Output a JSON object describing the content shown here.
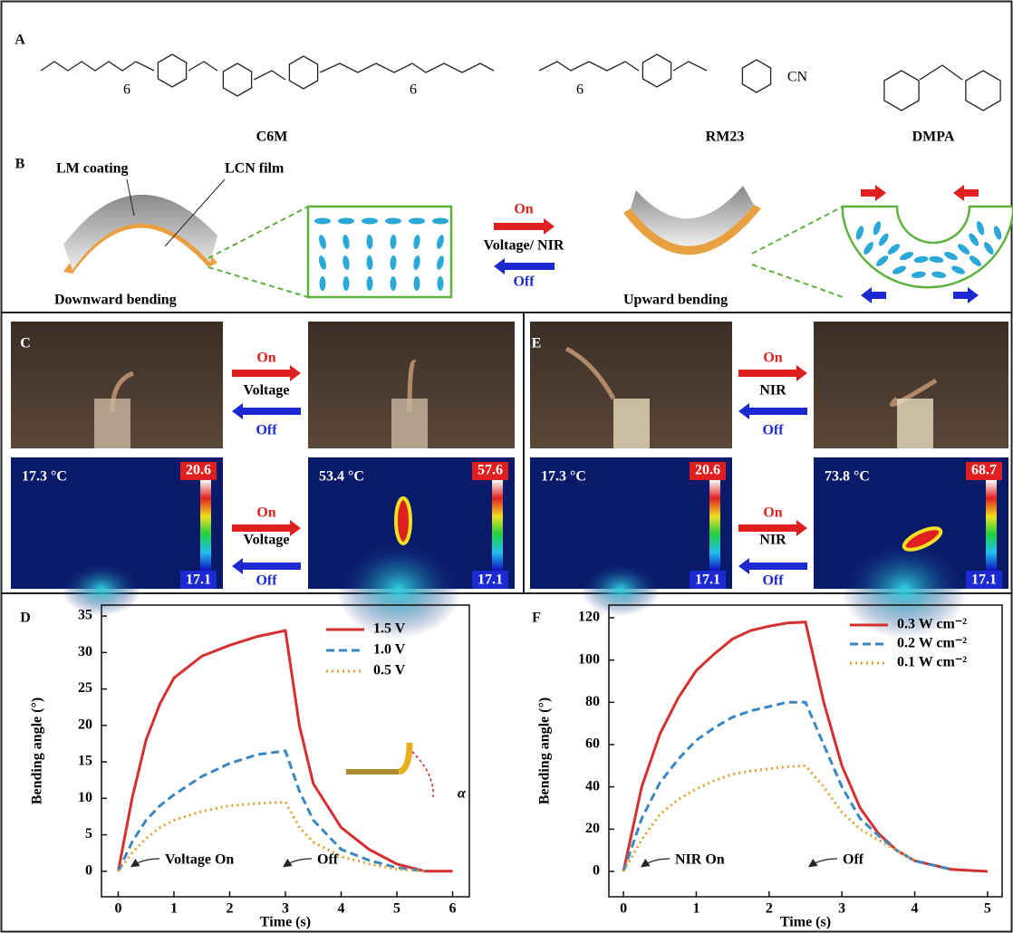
{
  "panel_labels": [
    "A",
    "B",
    "C",
    "D",
    "E",
    "F"
  ],
  "panel_a": {
    "molecules": [
      "C6M",
      "RM23",
      "DMPA"
    ],
    "atoms": [
      "6",
      "6",
      "6",
      "CN"
    ]
  },
  "panel_b": {
    "coating": "LM coating",
    "film": "LCN film",
    "down": "Downward bending",
    "up": "Upward bending",
    "on": "On",
    "stimulus": "Voltage/ NIR",
    "off": "Off"
  },
  "panel_c": {
    "on": [
      "On",
      "On"
    ],
    "stimulus": [
      "Voltage",
      "Voltage"
    ],
    "off": [
      "Off",
      "Off"
    ],
    "temps": [
      "17.3 °C",
      "53.4 °C"
    ],
    "scale_max": [
      "20.6",
      "57.6"
    ],
    "scale_min": [
      "17.1",
      "17.1"
    ]
  },
  "panel_e": {
    "on": [
      "On",
      "On"
    ],
    "stimulus": [
      "NIR",
      "NIR"
    ],
    "off": [
      "Off",
      "Off"
    ],
    "temps": [
      "17.3 °C",
      "73.8 °C"
    ],
    "scale_max": [
      "20.6",
      "68.7"
    ],
    "scale_min": [
      "17.1",
      "17.1"
    ]
  },
  "chart_data": [
    {
      "type": "line",
      "xlabel": "Time (s)",
      "ylabel": "Bending angle (°)",
      "x": [
        0,
        0.25,
        0.5,
        0.75,
        1,
        1.5,
        2,
        2.5,
        3,
        3.25,
        3.5,
        4,
        4.5,
        5,
        5.5,
        6
      ],
      "series": [
        {
          "name": "1.5 V",
          "color": "#d62f2f",
          "dash": "solid",
          "values": [
            0,
            10,
            18,
            23,
            26.5,
            29.5,
            31,
            32.2,
            33,
            20,
            12,
            6,
            3,
            1,
            0,
            0
          ]
        },
        {
          "name": "1.0 V",
          "color": "#3a86c0",
          "dash": "dashed",
          "values": [
            0,
            4,
            7,
            9,
            10.5,
            13,
            14.8,
            16,
            16.5,
            11,
            7,
            3,
            1.5,
            0.5,
            0,
            null
          ]
        },
        {
          "name": "0.5 V",
          "color": "#e0a030",
          "dash": "dotted",
          "values": [
            0,
            2.5,
            4.5,
            6,
            7,
            8.2,
            9,
            9.3,
            9.5,
            6,
            4,
            2,
            1,
            0.3,
            0,
            null
          ]
        }
      ],
      "xlim": [
        -0.3,
        6.3
      ],
      "xticks": [
        0,
        1,
        2,
        3,
        4,
        5,
        6
      ],
      "ylim": [
        -3.5,
        36.5
      ],
      "yticks": [
        0,
        5,
        10,
        15,
        20,
        25,
        30,
        35
      ],
      "legend": "upper right",
      "annotations": [
        "Voltage On",
        "Off",
        "α"
      ]
    },
    {
      "type": "line",
      "xlabel": "Time (s)",
      "ylabel": "Bending angle (°)",
      "x": [
        0,
        0.25,
        0.5,
        0.75,
        1,
        1.25,
        1.5,
        1.75,
        2,
        2.25,
        2.5,
        2.75,
        3,
        3.25,
        3.5,
        3.75,
        4,
        4.5,
        5
      ],
      "series": [
        {
          "name": "0.3 W cm⁻²",
          "color": "#d62f2f",
          "dash": "solid",
          "values": [
            0,
            40,
            65,
            82,
            95,
            103,
            110,
            114,
            116,
            117.5,
            118,
            80,
            50,
            30,
            18,
            10,
            5,
            1,
            0
          ]
        },
        {
          "name": "0.2 W cm⁻²",
          "color": "#3a86c0",
          "dash": "dashed",
          "values": [
            0,
            25,
            42,
            53,
            62,
            68,
            73,
            76,
            78,
            80,
            80,
            60,
            40,
            25,
            17,
            10,
            5,
            1,
            null
          ]
        },
        {
          "name": "0.1 W cm⁻²",
          "color": "#e0a030",
          "dash": "dotted",
          "values": [
            0,
            15,
            27,
            34,
            39,
            43,
            46,
            47.5,
            48.5,
            49.5,
            50,
            40,
            28,
            20,
            15,
            10,
            5,
            null,
            null
          ]
        }
      ],
      "xlim": [
        -0.2,
        5.2
      ],
      "xticks": [
        0,
        1,
        2,
        3,
        4,
        5
      ],
      "ylim": [
        -12,
        126
      ],
      "yticks": [
        0,
        20,
        40,
        60,
        80,
        100,
        120
      ],
      "legend": "upper right",
      "annotations": [
        "NIR On",
        "Off"
      ]
    }
  ]
}
